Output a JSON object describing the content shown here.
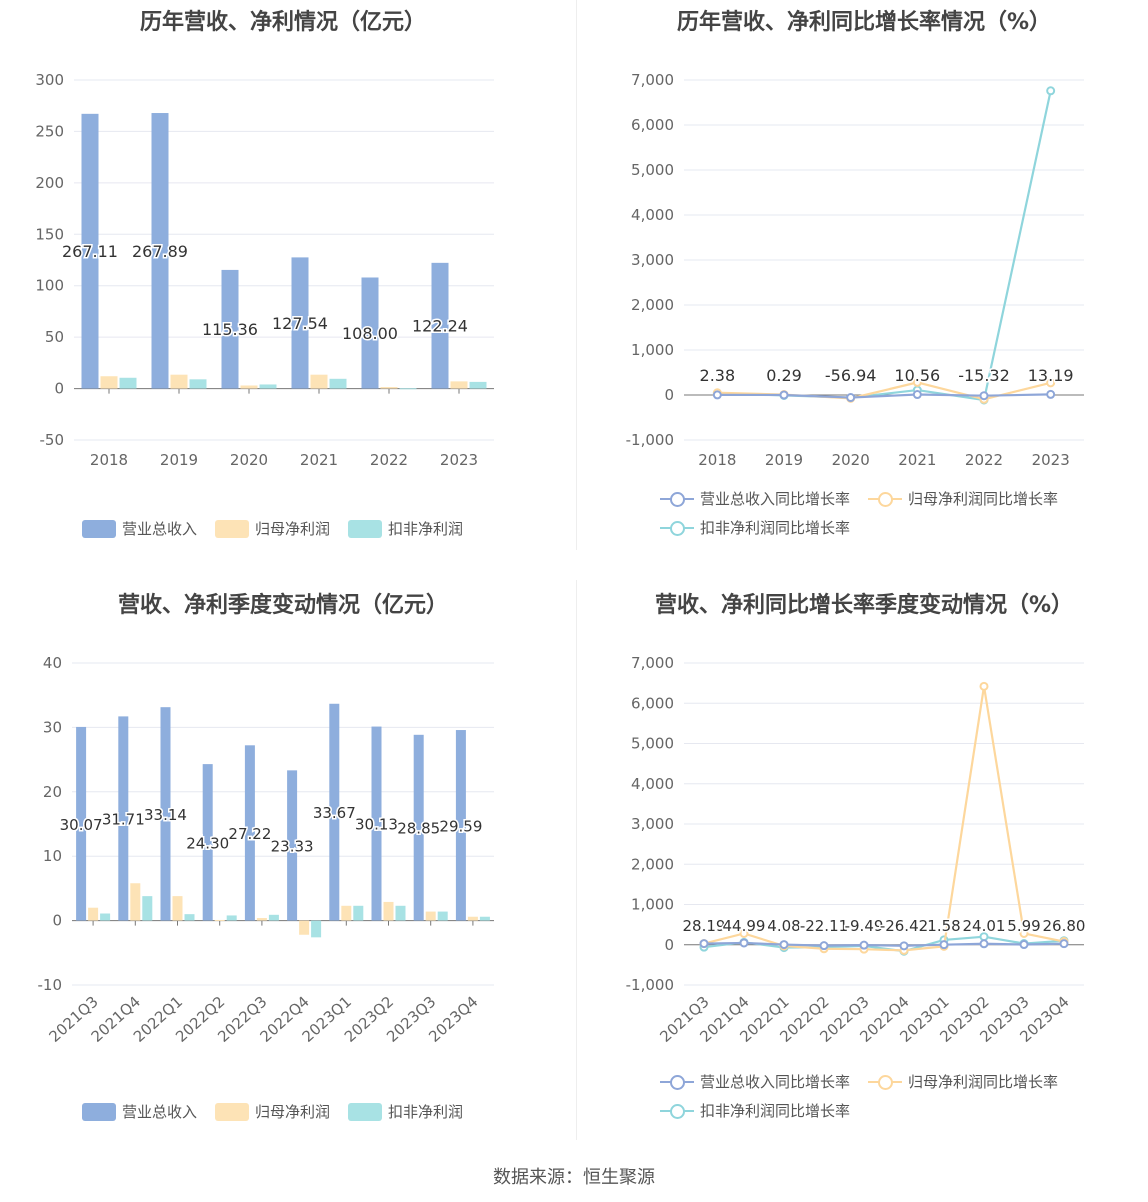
{
  "colors": {
    "revenue": "#8eaedd",
    "parent_net": "#fde3b6",
    "deducted_net": "#a8e2e4",
    "rev_line": "#8ea6d8",
    "parent_line": "#fdd79c",
    "deducted_line": "#8fd5dc"
  },
  "source": "数据来源：恒生聚源",
  "chart_data": [
    {
      "type": "bar",
      "title": "历年营收、净利情况（亿元）",
      "categories": [
        "2018",
        "2019",
        "2020",
        "2021",
        "2022",
        "2023"
      ],
      "ylim": [
        -50,
        300
      ],
      "yticks": [
        -50,
        0,
        50,
        100,
        150,
        200,
        250,
        300
      ],
      "grid": true,
      "legend_position": "bottom",
      "series": [
        {
          "name": "营业总收入",
          "values": [
            267.11,
            267.89,
            115.36,
            127.54,
            108.0,
            122.24
          ],
          "labels": [
            "267.11",
            "267.89",
            "115.36",
            "127.54",
            "108.00",
            "122.24"
          ]
        },
        {
          "name": "归母净利润",
          "values": [
            12.0,
            13.5,
            3.0,
            13.5,
            1.5,
            7.0
          ]
        },
        {
          "name": "扣非净利润",
          "values": [
            10.5,
            9.0,
            4.0,
            9.5,
            0.3,
            6.5
          ]
        }
      ]
    },
    {
      "type": "line",
      "title": "历年营收、净利同比增长率情况（%）",
      "categories": [
        "2018",
        "2019",
        "2020",
        "2021",
        "2022",
        "2023"
      ],
      "ylim": [
        -1000,
        7000
      ],
      "yticks": [
        -1000,
        0,
        1000,
        2000,
        3000,
        4000,
        5000,
        6000,
        7000
      ],
      "grid": true,
      "legend_position": "bottom",
      "series": [
        {
          "name": "营业总收入同比增长率",
          "values": [
            2.38,
            0.29,
            -56.94,
            10.56,
            -15.32,
            13.19
          ],
          "labels": [
            "2.38",
            "0.29",
            "-56.94",
            "10.56",
            "-15.32",
            "13.19"
          ]
        },
        {
          "name": "归母净利润同比增长率",
          "values": [
            50,
            10,
            -75,
            280,
            -95,
            270
          ]
        },
        {
          "name": "扣非净利润同比增长率",
          "values": [
            40,
            -10,
            -60,
            110,
            -110,
            6760
          ]
        }
      ]
    },
    {
      "type": "bar",
      "title": "营收、净利季度变动情况（亿元）",
      "categories": [
        "2021Q3",
        "2021Q4",
        "2022Q1",
        "2022Q2",
        "2022Q3",
        "2022Q4",
        "2023Q1",
        "2023Q2",
        "2023Q3",
        "2023Q4"
      ],
      "ylim": [
        -10,
        40
      ],
      "yticks": [
        -10,
        0,
        10,
        20,
        30,
        40
      ],
      "grid": true,
      "legend_position": "bottom",
      "series": [
        {
          "name": "营业总收入",
          "values": [
            30.07,
            31.71,
            33.14,
            24.3,
            27.22,
            23.33,
            33.67,
            30.13,
            28.85,
            29.59
          ],
          "labels": [
            "30.07",
            "31.71",
            "33.14",
            "24.30",
            "27.22",
            "23.33",
            "33.67",
            "30.13",
            "28.85",
            "29.59"
          ]
        },
        {
          "name": "归母净利润",
          "values": [
            2.0,
            5.8,
            3.8,
            0.1,
            0.4,
            -2.2,
            2.3,
            2.9,
            1.4,
            0.6
          ]
        },
        {
          "name": "扣非净利润",
          "values": [
            1.1,
            3.8,
            1.0,
            0.8,
            0.9,
            -2.6,
            2.3,
            2.3,
            1.4,
            0.6
          ]
        }
      ]
    },
    {
      "type": "line",
      "title": "营收、净利同比增长率季度变动情况（%）",
      "categories": [
        "2021Q3",
        "2021Q4",
        "2022Q1",
        "2022Q2",
        "2022Q3",
        "2022Q4",
        "2023Q1",
        "2023Q2",
        "2023Q3",
        "2023Q4"
      ],
      "ylim": [
        -1000,
        7000
      ],
      "yticks": [
        -1000,
        0,
        1000,
        2000,
        3000,
        4000,
        5000,
        6000,
        7000
      ],
      "grid": true,
      "legend_position": "bottom",
      "series": [
        {
          "name": "营业总收入同比增长率",
          "values": [
            28.19,
            44.99,
            4.08,
            -22.11,
            -9.49,
            -26.42,
            1.58,
            24.01,
            5.99,
            26.8
          ],
          "labels": [
            "28.19",
            "44.99",
            "4.08",
            "-22.11",
            "-9.49",
            "-26.42",
            "1.58",
            "24.01",
            "5.99",
            "26.80"
          ]
        },
        {
          "name": "归母净利润同比增长率",
          "values": [
            30,
            280,
            -30,
            -100,
            -110,
            -140,
            -40,
            6420,
            280,
            80
          ]
        },
        {
          "name": "扣非净利润同比增长率",
          "values": [
            -60,
            60,
            -70,
            -60,
            -30,
            -160,
            120,
            200,
            30,
            100
          ]
        }
      ]
    }
  ]
}
